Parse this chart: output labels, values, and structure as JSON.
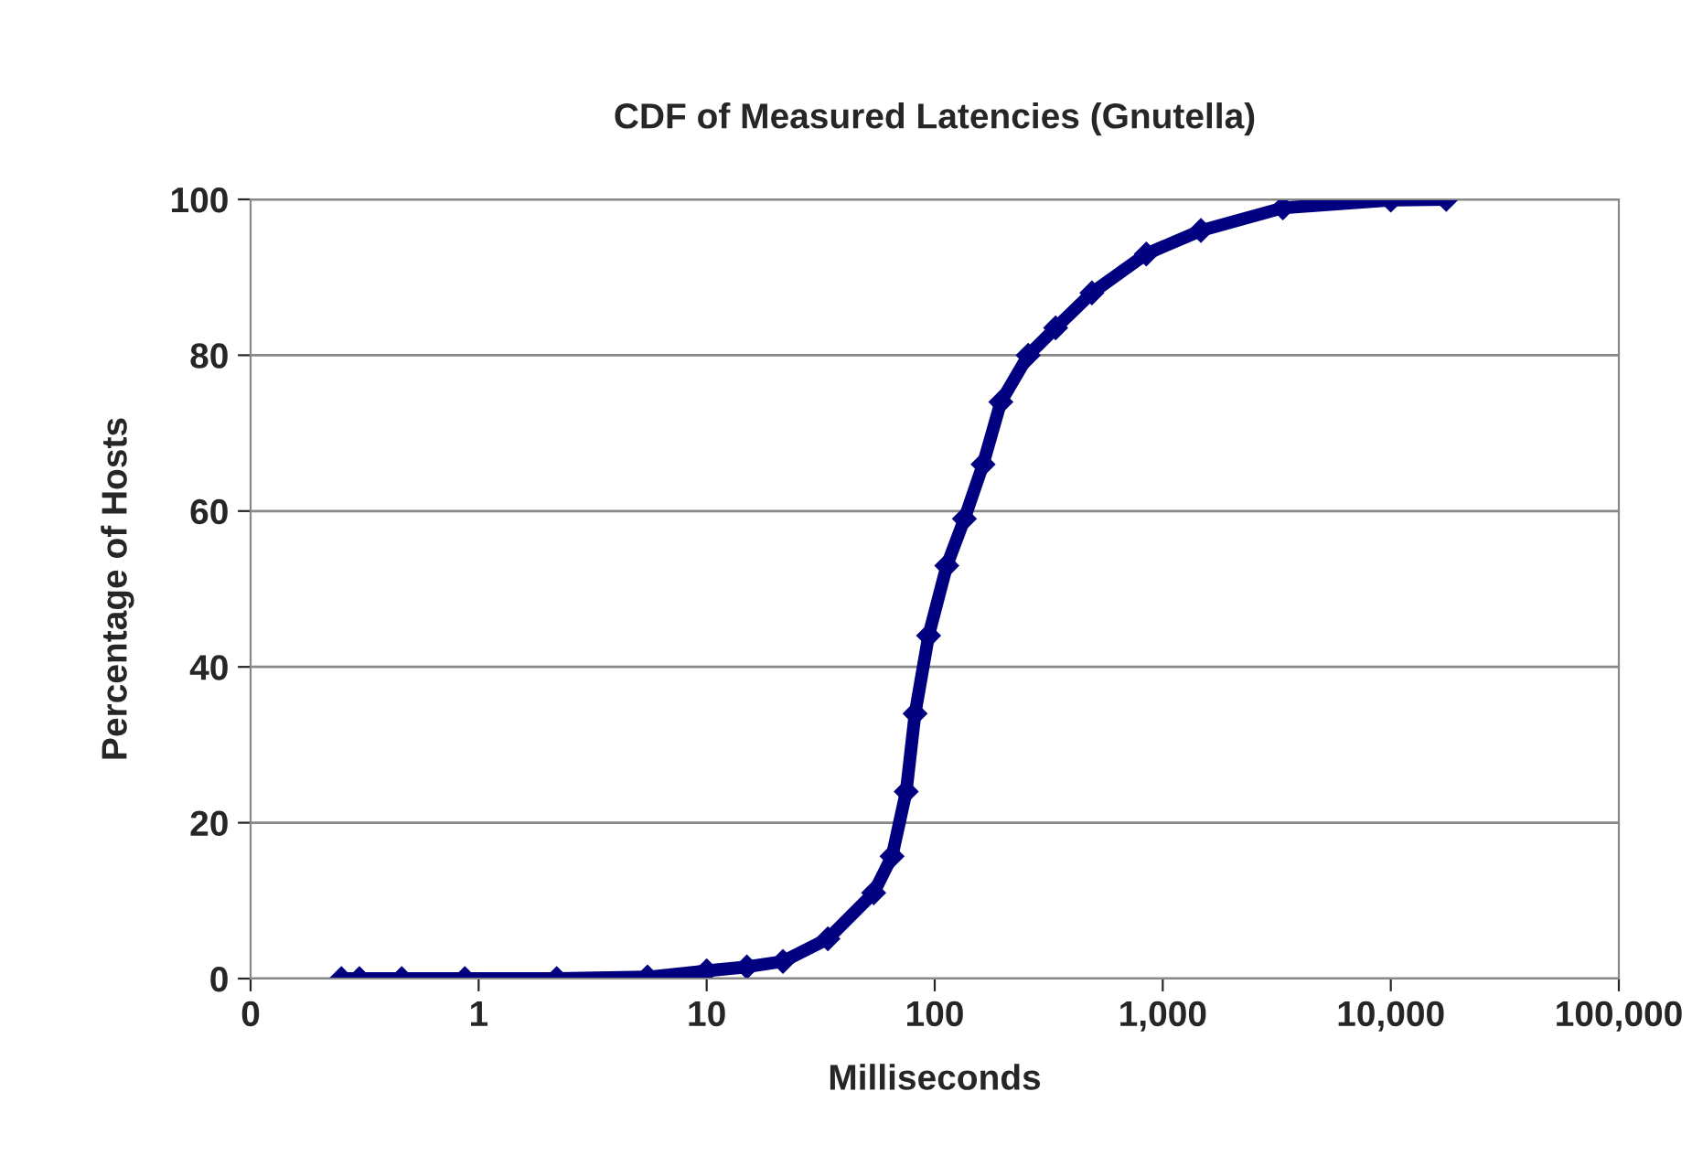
{
  "chart_data": {
    "type": "line",
    "title": "CDF of Measured Latencies (Gnutella)",
    "xlabel": "Milliseconds",
    "ylabel": "Percentage of Hosts",
    "log": "x",
    "grid": "y",
    "marker": "diamond",
    "line_style": "solid",
    "xlim": [
      0.1,
      100000
    ],
    "xticks": [
      {
        "value": 0.1,
        "label": "0"
      },
      1,
      10,
      100,
      {
        "value": 1000,
        "label": "1,000"
      },
      {
        "value": 10000,
        "label": "10,000"
      },
      {
        "value": 100000,
        "label": "100,000"
      }
    ],
    "ylim": [
      0,
      100
    ],
    "yticks": [
      0,
      20,
      40,
      60,
      80,
      100
    ],
    "series": [
      {
        "color": "#000080",
        "x": [
          0.25,
          0.3,
          0.46,
          0.87,
          2.2,
          5.5,
          10,
          15,
          21.6,
          34,
          54,
          65,
          75,
          82,
          94,
          113,
          135,
          163,
          195,
          257,
          339,
          489,
          847,
          1470,
          3360,
          10000,
          17500
        ],
        "values": [
          0,
          0,
          0,
          0,
          0,
          0.2,
          1,
          1.5,
          2.2,
          5.1,
          11,
          15.7,
          24,
          34,
          44,
          53,
          59,
          66,
          74,
          80,
          83.5,
          88,
          93,
          96,
          98.9,
          99.9,
          100
        ]
      }
    ]
  }
}
